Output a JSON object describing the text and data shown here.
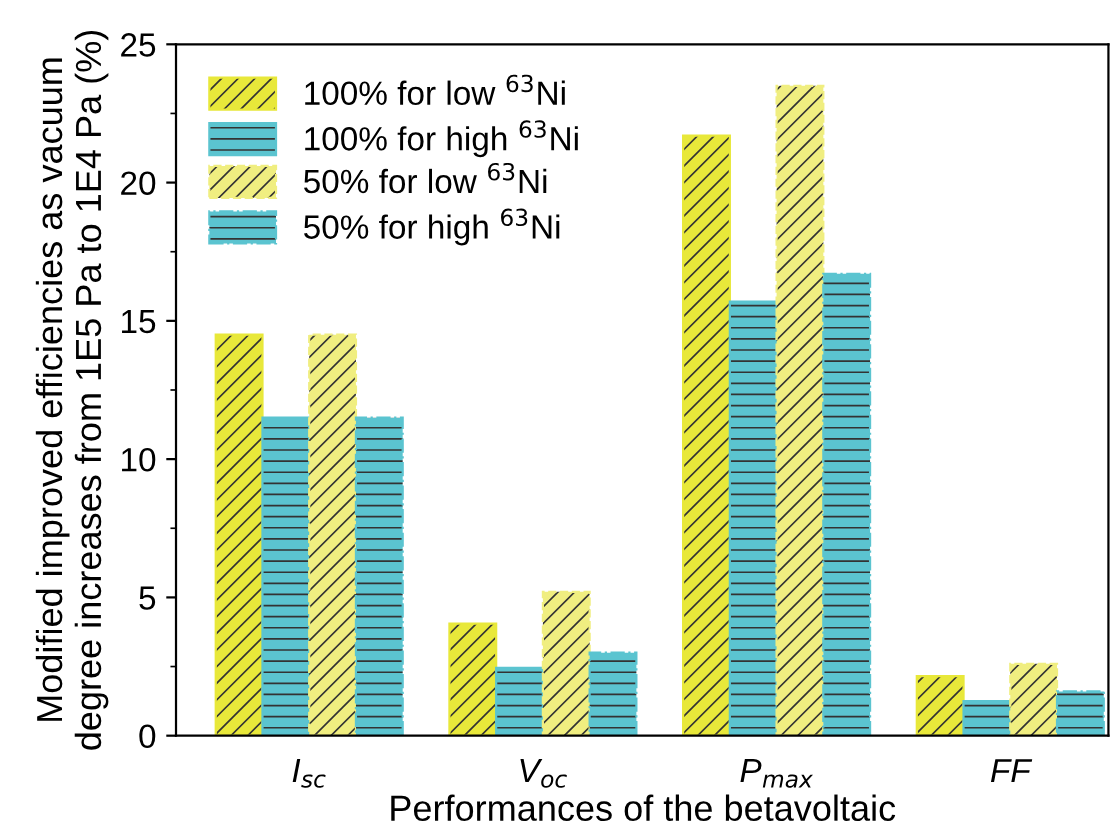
{
  "chart_data": {
    "type": "bar",
    "xlabel": "Performances of the betavoltaic",
    "ylabel": "Modified improved efficiencies as vacuum\ndegree increases from 1E5 Pa to 1E4 Pa (%)",
    "categories": [
      "I$_{sc}$",
      "V$_{oc}$",
      "P$_{max}$",
      "FF"
    ],
    "series": [
      {
        "name": "100% for low $^{63}$Ni",
        "color": "#e8e83a",
        "values": [
          14.5,
          4.05,
          21.7,
          2.15
        ]
      },
      {
        "name": "100% for high $^{63}$Ni",
        "color": "#5bc4d0",
        "values": [
          11.5,
          2.45,
          15.7,
          1.25
        ]
      },
      {
        "name": "50% for low $^{63}$Ni",
        "color": "#f0ee80",
        "values": [
          14.5,
          5.2,
          23.5,
          2.6
        ]
      },
      {
        "name": "50% for high $^{63}$Ni",
        "color": "#5bc4d0",
        "values": [
          11.5,
          3.0,
          16.7,
          1.6
        ]
      }
    ],
    "ylim": [
      0,
      25
    ],
    "yticks": [
      0,
      5,
      10,
      15,
      20,
      25
    ],
    "legend": "top left",
    "grid": false
  }
}
